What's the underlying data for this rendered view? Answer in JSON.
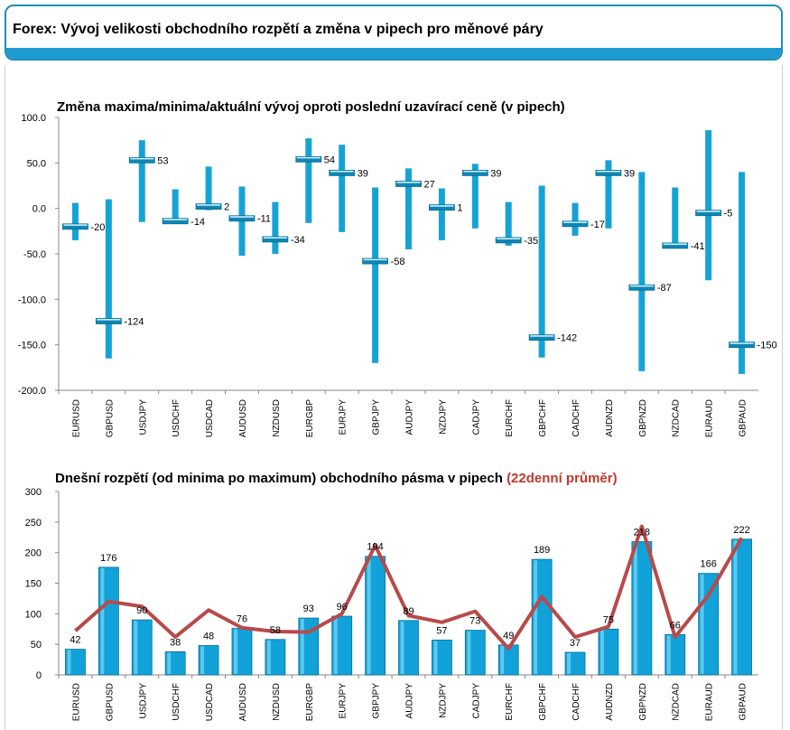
{
  "page_title": "Forex: Vývoj velikosti obchodního rozpětí a změna v pipech pro měnové páry",
  "colors": {
    "accent": "#1e9bd0",
    "bar": "#15a3d6",
    "avg_line": "#b84a4a"
  },
  "chart_data": [
    {
      "type": "bar",
      "title": "Změna maxima/minima/aktuální vývoj oproti poslední uzavírací ceně (v pipech)",
      "categories": [
        "EURUSD",
        "GBPUSD",
        "USDJPY",
        "USDCHF",
        "USDCAD",
        "AUDUSD",
        "NZDUSD",
        "EURGBP",
        "EURJPY",
        "GBPJPY",
        "AUDJPY",
        "NZDJPY",
        "CADJPY",
        "EURCHF",
        "GBPCHF",
        "CADCHF",
        "AUDNZD",
        "GBPNZD",
        "NZDCAD",
        "EURAUD",
        "GBPAUD"
      ],
      "series": [
        {
          "name": "",
          "values": [
            6,
            10,
            75,
            21,
            46,
            24,
            7,
            77,
            70,
            23,
            44,
            22,
            49,
            7,
            25,
            6,
            53,
            40,
            23,
            86,
            40
          ]
        },
        {
          "name": "",
          "values": [
            -35,
            -165,
            -15,
            -16,
            -2,
            -52,
            -50,
            -16,
            -26,
            -170,
            -45,
            -35,
            -22,
            -41,
            -164,
            -30,
            -22,
            -179,
            -41,
            -79,
            -182
          ]
        },
        {
          "name": "",
          "values": [
            -20,
            -124,
            53,
            -14,
            2,
            -11,
            -34,
            54,
            39,
            -58,
            27,
            1,
            39,
            -35,
            -142,
            -17,
            39,
            -87,
            -41,
            -5,
            -150
          ]
        }
      ],
      "ylim": [
        -200,
        100
      ],
      "yticks": [
        "100.0",
        "50.0",
        "0.0",
        "-50.0",
        "-100.0",
        "-150.0",
        "-200.0"
      ],
      "grid": false
    },
    {
      "type": "bar",
      "title": "Dnešní rozpětí (od minima po maximum) obchodního pásma v pipech",
      "title_highlight": "(22denní průměr)",
      "categories": [
        "EURUSD",
        "GBPUSD",
        "USDJPY",
        "USDCHF",
        "USDCAD",
        "AUDUSD",
        "NZDUSD",
        "EURGBP",
        "EURJPY",
        "GBPJPY",
        "AUDJPY",
        "NZDJPY",
        "CADJPY",
        "EURCHF",
        "GBPCHF",
        "CADCHF",
        "AUDNZD",
        "GBPNZD",
        "NZDCAD",
        "EURAUD",
        "GBPAUD"
      ],
      "series": [
        {
          "name": "",
          "values": [
            42,
            176,
            90,
            38,
            48,
            76,
            58,
            93,
            96,
            194,
            89,
            57,
            73,
            49,
            189,
            37,
            75,
            218,
            66,
            166,
            222
          ]
        },
        {
          "name": "22denní průměr",
          "values": [
            72,
            120,
            112,
            62,
            106,
            77,
            71,
            70,
            100,
            212,
            97,
            86,
            104,
            43,
            128,
            62,
            79,
            243,
            62,
            130,
            224
          ]
        }
      ],
      "ylim": [
        0,
        300
      ],
      "yticks": [
        "300",
        "250",
        "200",
        "150",
        "100",
        "50",
        "0"
      ],
      "grid": false
    }
  ]
}
